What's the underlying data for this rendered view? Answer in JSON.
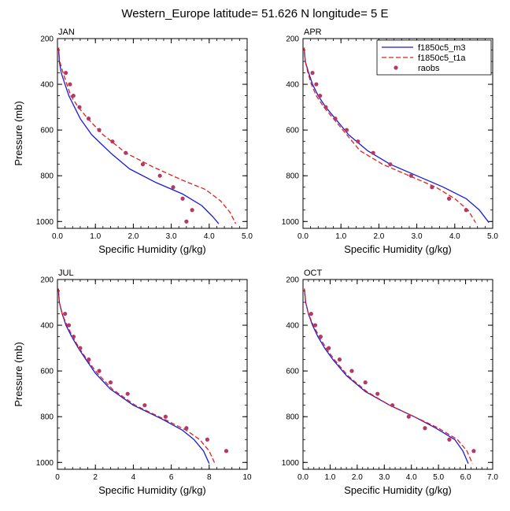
{
  "figure_title": "Western_Europe  latitude= 51.626 N longitude= 5 E",
  "colors": {
    "m3": "#1a1adc",
    "t1a": "#e0201c",
    "raobs": "#b23a64",
    "axis": "#000000"
  },
  "chart_data": [
    {
      "type": "line",
      "panel": "JAN",
      "xlabel": "Specific Humidity (g/kg)",
      "ylabel": "Pressure (mb)",
      "xlim": [
        0,
        5
      ],
      "ylim": [
        200,
        1030
      ],
      "y_reversed": true,
      "xticks": [
        "0.0",
        "1.0",
        "2.0",
        "3.0",
        "4.0",
        "5.0"
      ],
      "xtick_values": [
        0,
        1,
        2,
        3,
        4,
        5
      ],
      "yticks": [
        "200",
        "400",
        "600",
        "800",
        "1000"
      ],
      "ytick_values": [
        200,
        400,
        600,
        800,
        1000
      ],
      "legend": null,
      "series": [
        {
          "name": "f1850c5_m3",
          "style": "solid",
          "points": [
            [
              0.03,
              240
            ],
            [
              0.05,
              300
            ],
            [
              0.1,
              350
            ],
            [
              0.2,
              400
            ],
            [
              0.3,
              450
            ],
            [
              0.45,
              500
            ],
            [
              0.6,
              550
            ],
            [
              0.9,
              620
            ],
            [
              1.4,
              700
            ],
            [
              1.9,
              770
            ],
            [
              2.6,
              830
            ],
            [
              3.3,
              880
            ],
            [
              3.8,
              930
            ],
            [
              4.1,
              980
            ],
            [
              4.25,
              1010
            ]
          ]
        },
        {
          "name": "f1850c5_t1a",
          "style": "dashed",
          "points": [
            [
              0.03,
              240
            ],
            [
              0.06,
              300
            ],
            [
              0.15,
              350
            ],
            [
              0.25,
              400
            ],
            [
              0.35,
              450
            ],
            [
              0.55,
              500
            ],
            [
              0.8,
              550
            ],
            [
              1.2,
              620
            ],
            [
              1.8,
              700
            ],
            [
              2.5,
              760
            ],
            [
              3.3,
              820
            ],
            [
              3.9,
              860
            ],
            [
              4.3,
              910
            ],
            [
              4.55,
              960
            ],
            [
              4.7,
              1010
            ]
          ]
        },
        {
          "name": "raobs",
          "style": "markers",
          "points": [
            [
              0.22,
              350
            ],
            [
              0.33,
              400
            ],
            [
              0.42,
              450
            ],
            [
              0.58,
              500
            ],
            [
              0.82,
              550
            ],
            [
              1.1,
              600
            ],
            [
              1.45,
              650
            ],
            [
              1.8,
              700
            ],
            [
              2.25,
              750
            ],
            [
              2.7,
              800
            ],
            [
              3.05,
              850
            ],
            [
              3.3,
              900
            ],
            [
              3.55,
              950
            ],
            [
              3.4,
              1000
            ]
          ]
        }
      ]
    },
    {
      "type": "line",
      "panel": "APR",
      "xlabel": "Specific Humidity (g/kg)",
      "ylabel": "",
      "xlim": [
        0,
        5
      ],
      "ylim": [
        200,
        1030
      ],
      "y_reversed": true,
      "xticks": [
        "0.0",
        "1.0",
        "2.0",
        "3.0",
        "4.0",
        "5.0"
      ],
      "xtick_values": [
        0,
        1,
        2,
        3,
        4,
        5
      ],
      "yticks": [
        "200",
        "400",
        "600",
        "800",
        "1000"
      ],
      "ytick_values": [
        200,
        400,
        600,
        800,
        1000
      ],
      "legend": [
        "f1850c5_m3",
        "f1850c5_t1a",
        "raobs"
      ],
      "series": [
        {
          "name": "f1850c5_m3",
          "style": "solid",
          "points": [
            [
              0.03,
              240
            ],
            [
              0.06,
              300
            ],
            [
              0.15,
              350
            ],
            [
              0.25,
              400
            ],
            [
              0.4,
              450
            ],
            [
              0.6,
              500
            ],
            [
              0.85,
              550
            ],
            [
              1.2,
              620
            ],
            [
              1.7,
              690
            ],
            [
              2.3,
              750
            ],
            [
              3.0,
              800
            ],
            [
              3.7,
              850
            ],
            [
              4.3,
              900
            ],
            [
              4.65,
              950
            ],
            [
              4.9,
              1005
            ]
          ]
        },
        {
          "name": "f1850c5_t1a",
          "style": "dashed",
          "points": [
            [
              0.03,
              240
            ],
            [
              0.06,
              300
            ],
            [
              0.13,
              350
            ],
            [
              0.22,
              400
            ],
            [
              0.35,
              450
            ],
            [
              0.55,
              500
            ],
            [
              0.8,
              550
            ],
            [
              1.1,
              610
            ],
            [
              1.5,
              690
            ],
            [
              2.1,
              750
            ],
            [
              2.8,
              800
            ],
            [
              3.5,
              850
            ],
            [
              4.0,
              900
            ],
            [
              4.35,
              950
            ],
            [
              4.55,
              1005
            ]
          ]
        },
        {
          "name": "raobs",
          "style": "markers",
          "points": [
            [
              0.25,
              350
            ],
            [
              0.35,
              400
            ],
            [
              0.45,
              450
            ],
            [
              0.6,
              500
            ],
            [
              0.85,
              550
            ],
            [
              1.15,
              600
            ],
            [
              1.45,
              650
            ],
            [
              1.85,
              700
            ],
            [
              2.3,
              750
            ],
            [
              2.85,
              800
            ],
            [
              3.4,
              850
            ],
            [
              3.85,
              900
            ],
            [
              4.3,
              950
            ]
          ]
        }
      ]
    },
    {
      "type": "line",
      "panel": "JUL",
      "xlabel": "Specific Humidity (g/kg)",
      "ylabel": "Pressure (mb)",
      "xlim": [
        0,
        10
      ],
      "ylim": [
        200,
        1030
      ],
      "y_reversed": true,
      "xticks": [
        "0",
        "2",
        "4",
        "6",
        "8",
        "10"
      ],
      "xtick_values": [
        0,
        2,
        4,
        6,
        8,
        10
      ],
      "yticks": [
        "200",
        "400",
        "600",
        "800",
        "1000"
      ],
      "ytick_values": [
        200,
        400,
        600,
        800,
        1000
      ],
      "legend": null,
      "series": [
        {
          "name": "f1850c5_m3",
          "style": "solid",
          "points": [
            [
              0.05,
              240
            ],
            [
              0.1,
              300
            ],
            [
              0.25,
              350
            ],
            [
              0.45,
              400
            ],
            [
              0.75,
              450
            ],
            [
              1.1,
              500
            ],
            [
              1.5,
              550
            ],
            [
              2.0,
              610
            ],
            [
              2.8,
              680
            ],
            [
              4.0,
              750
            ],
            [
              5.5,
              810
            ],
            [
              6.6,
              860
            ],
            [
              7.2,
              900
            ],
            [
              7.7,
              950
            ],
            [
              8.0,
              1005
            ]
          ]
        },
        {
          "name": "f1850c5_t1a",
          "style": "dashed",
          "points": [
            [
              0.05,
              240
            ],
            [
              0.1,
              300
            ],
            [
              0.25,
              350
            ],
            [
              0.5,
              400
            ],
            [
              0.8,
              450
            ],
            [
              1.15,
              500
            ],
            [
              1.55,
              550
            ],
            [
              2.1,
              610
            ],
            [
              2.9,
              680
            ],
            [
              4.1,
              750
            ],
            [
              5.6,
              810
            ],
            [
              6.8,
              860
            ],
            [
              7.5,
              900
            ],
            [
              8.0,
              950
            ],
            [
              8.3,
              1005
            ]
          ]
        },
        {
          "name": "raobs",
          "style": "markers",
          "points": [
            [
              0.4,
              350
            ],
            [
              0.6,
              400
            ],
            [
              0.85,
              450
            ],
            [
              1.2,
              500
            ],
            [
              1.65,
              550
            ],
            [
              2.2,
              600
            ],
            [
              2.8,
              650
            ],
            [
              3.7,
              700
            ],
            [
              4.6,
              750
            ],
            [
              5.7,
              800
            ],
            [
              6.8,
              850
            ],
            [
              7.9,
              900
            ],
            [
              8.9,
              950
            ]
          ]
        }
      ]
    },
    {
      "type": "line",
      "panel": "OCT",
      "xlabel": "Specific Humidity (g/kg)",
      "ylabel": "",
      "xlim": [
        0,
        7
      ],
      "ylim": [
        200,
        1030
      ],
      "y_reversed": true,
      "xticks": [
        "0.0",
        "1.0",
        "2.0",
        "3.0",
        "4.0",
        "5.0",
        "6.0",
        "7.0"
      ],
      "xtick_values": [
        0,
        1,
        2,
        3,
        4,
        5,
        6,
        7
      ],
      "yticks": [
        "200",
        "400",
        "600",
        "800",
        "1000"
      ],
      "ytick_values": [
        200,
        400,
        600,
        800,
        1000
      ],
      "legend": null,
      "series": [
        {
          "name": "f1850c5_m3",
          "style": "solid",
          "points": [
            [
              0.05,
              240
            ],
            [
              0.1,
              300
            ],
            [
              0.2,
              350
            ],
            [
              0.35,
              400
            ],
            [
              0.55,
              450
            ],
            [
              0.8,
              500
            ],
            [
              1.1,
              550
            ],
            [
              1.6,
              620
            ],
            [
              2.3,
              690
            ],
            [
              3.2,
              750
            ],
            [
              4.1,
              800
            ],
            [
              4.9,
              850
            ],
            [
              5.6,
              900
            ],
            [
              5.9,
              950
            ],
            [
              6.1,
              1005
            ]
          ]
        },
        {
          "name": "f1850c5_t1a",
          "style": "dashed",
          "points": [
            [
              0.05,
              240
            ],
            [
              0.1,
              300
            ],
            [
              0.2,
              350
            ],
            [
              0.38,
              400
            ],
            [
              0.6,
              450
            ],
            [
              0.85,
              500
            ],
            [
              1.15,
              550
            ],
            [
              1.65,
              620
            ],
            [
              2.35,
              690
            ],
            [
              3.2,
              750
            ],
            [
              4.1,
              800
            ],
            [
              5.0,
              850
            ],
            [
              5.7,
              900
            ],
            [
              6.05,
              950
            ],
            [
              6.25,
              1005
            ]
          ]
        },
        {
          "name": "raobs",
          "style": "markers",
          "points": [
            [
              0.3,
              350
            ],
            [
              0.45,
              400
            ],
            [
              0.65,
              450
            ],
            [
              0.95,
              500
            ],
            [
              1.35,
              550
            ],
            [
              1.8,
              600
            ],
            [
              2.3,
              650
            ],
            [
              2.75,
              700
            ],
            [
              3.3,
              750
            ],
            [
              3.9,
              800
            ],
            [
              4.5,
              850
            ],
            [
              5.4,
              900
            ],
            [
              6.3,
              950
            ]
          ]
        }
      ]
    }
  ]
}
